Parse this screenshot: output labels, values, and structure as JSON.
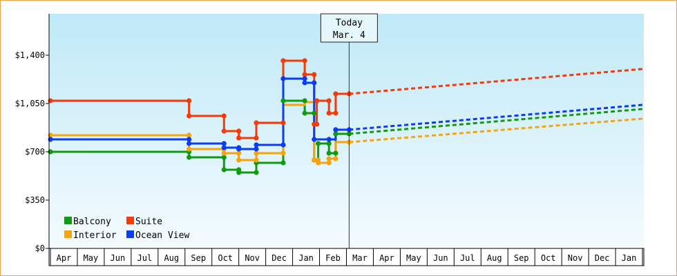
{
  "chart_data": {
    "type": "line",
    "title": "",
    "xlabel": "",
    "ylabel": "",
    "ylim": [
      0,
      1700
    ],
    "y_ticks": [
      {
        "value": 0,
        "label": "$0"
      },
      {
        "value": 350,
        "label": "$350"
      },
      {
        "value": 700,
        "label": "$700"
      },
      {
        "value": 1050,
        "label": "$1,050"
      },
      {
        "value": 1400,
        "label": "$1,400"
      }
    ],
    "x_tick_labels": [
      "Apr",
      "May",
      "Jun",
      "Jul",
      "Aug",
      "Sep",
      "Oct",
      "Nov",
      "Dec",
      "Jan",
      "Feb",
      "Mar",
      "Apr",
      "May",
      "Jun",
      "Jul",
      "Aug",
      "Sep",
      "Oct",
      "Nov",
      "Dec",
      "Jan"
    ],
    "x_units": "months since start of Apr of first year (0 = Apr 1)",
    "today": {
      "x": 11.1,
      "label_line1": "Today",
      "label_line2": "Mar. 4"
    },
    "grid": false,
    "legend_position": "bottom-left",
    "colors": {
      "plot_bg_top": "#bfe9f7",
      "plot_bg_bottom": "#f4fbfe",
      "frame_border": "#e9a24a",
      "axis": "#000000"
    },
    "series": [
      {
        "name": "Balcony",
        "color": "#0f9a0f",
        "history": [
          [
            0,
            700
          ],
          [
            5.15,
            700
          ],
          [
            5.15,
            660
          ],
          [
            6.45,
            660
          ],
          [
            6.45,
            570
          ],
          [
            7.0,
            570
          ],
          [
            7.0,
            550
          ],
          [
            7.65,
            550
          ],
          [
            7.65,
            620
          ],
          [
            8.65,
            620
          ],
          [
            8.65,
            1070
          ],
          [
            9.45,
            1070
          ],
          [
            9.45,
            980
          ],
          [
            9.8,
            980
          ],
          [
            9.8,
            640
          ],
          [
            9.95,
            640
          ],
          [
            9.95,
            760
          ],
          [
            10.35,
            760
          ],
          [
            10.35,
            690
          ],
          [
            10.6,
            690
          ],
          [
            10.6,
            830
          ],
          [
            11.1,
            830
          ]
        ],
        "history_markers": [
          [
            0,
            700
          ],
          [
            5.15,
            700
          ],
          [
            5.15,
            660
          ],
          [
            6.45,
            660
          ],
          [
            6.45,
            570
          ],
          [
            7.0,
            570
          ],
          [
            7.0,
            550
          ],
          [
            7.65,
            550
          ],
          [
            7.65,
            620
          ],
          [
            8.65,
            620
          ],
          [
            8.65,
            1070
          ],
          [
            9.45,
            1070
          ],
          [
            9.45,
            980
          ],
          [
            9.8,
            980
          ],
          [
            9.8,
            640
          ],
          [
            9.95,
            640
          ],
          [
            9.95,
            760
          ],
          [
            10.35,
            760
          ],
          [
            10.35,
            690
          ],
          [
            10.6,
            690
          ],
          [
            10.6,
            830
          ],
          [
            11.1,
            830
          ]
        ],
        "forecast": [
          [
            11.1,
            830
          ],
          [
            22,
            1010
          ]
        ]
      },
      {
        "name": "Suite",
        "color": "#f23a0a",
        "history": [
          [
            0,
            1070
          ],
          [
            5.15,
            1070
          ],
          [
            5.15,
            960
          ],
          [
            6.45,
            960
          ],
          [
            6.45,
            850
          ],
          [
            7.0,
            850
          ],
          [
            7.0,
            800
          ],
          [
            7.65,
            800
          ],
          [
            7.65,
            910
          ],
          [
            8.65,
            910
          ],
          [
            8.65,
            1360
          ],
          [
            9.45,
            1360
          ],
          [
            9.45,
            1260
          ],
          [
            9.8,
            1260
          ],
          [
            9.8,
            900
          ],
          [
            9.9,
            900
          ],
          [
            9.9,
            1070
          ],
          [
            10.35,
            1070
          ],
          [
            10.35,
            980
          ],
          [
            10.6,
            980
          ],
          [
            10.6,
            1120
          ],
          [
            11.1,
            1120
          ]
        ],
        "history_markers": [
          [
            0,
            1070
          ],
          [
            5.15,
            1070
          ],
          [
            5.15,
            960
          ],
          [
            6.45,
            960
          ],
          [
            6.45,
            850
          ],
          [
            7.0,
            850
          ],
          [
            7.0,
            800
          ],
          [
            7.65,
            800
          ],
          [
            7.65,
            910
          ],
          [
            8.65,
            910
          ],
          [
            8.65,
            1360
          ],
          [
            9.45,
            1360
          ],
          [
            9.45,
            1260
          ],
          [
            9.8,
            1260
          ],
          [
            9.8,
            900
          ],
          [
            9.9,
            900
          ],
          [
            9.9,
            1070
          ],
          [
            10.35,
            1070
          ],
          [
            10.35,
            980
          ],
          [
            10.6,
            980
          ],
          [
            10.6,
            1120
          ],
          [
            11.1,
            1120
          ]
        ],
        "forecast": [
          [
            11.1,
            1120
          ],
          [
            22,
            1300
          ]
        ]
      },
      {
        "name": "Interior",
        "color": "#f5a40f",
        "history": [
          [
            0,
            820
          ],
          [
            5.15,
            820
          ],
          [
            5.15,
            720
          ],
          [
            6.45,
            720
          ],
          [
            6.45,
            690
          ],
          [
            7.0,
            690
          ],
          [
            7.0,
            640
          ],
          [
            7.65,
            640
          ],
          [
            7.65,
            690
          ],
          [
            8.65,
            690
          ],
          [
            8.65,
            1040
          ],
          [
            9.45,
            1040
          ],
          [
            9.45,
            1060
          ],
          [
            9.8,
            1060
          ],
          [
            9.8,
            640
          ],
          [
            9.95,
            640
          ],
          [
            9.95,
            620
          ],
          [
            10.35,
            620
          ],
          [
            10.35,
            650
          ],
          [
            10.6,
            650
          ],
          [
            10.6,
            770
          ],
          [
            11.1,
            770
          ]
        ],
        "history_markers": [
          [
            0,
            820
          ],
          [
            5.15,
            820
          ],
          [
            5.15,
            720
          ],
          [
            6.45,
            720
          ],
          [
            6.45,
            690
          ],
          [
            7.0,
            690
          ],
          [
            7.0,
            640
          ],
          [
            7.65,
            640
          ],
          [
            7.65,
            690
          ],
          [
            8.65,
            690
          ],
          [
            9.8,
            640
          ],
          [
            9.95,
            640
          ],
          [
            9.95,
            620
          ],
          [
            10.35,
            620
          ],
          [
            10.35,
            650
          ],
          [
            10.6,
            650
          ],
          [
            11.1,
            770
          ]
        ],
        "forecast": [
          [
            11.1,
            770
          ],
          [
            22,
            940
          ]
        ]
      },
      {
        "name": "Ocean View",
        "color": "#0a3cf0",
        "history": [
          [
            0,
            790
          ],
          [
            5.15,
            790
          ],
          [
            5.15,
            760
          ],
          [
            6.45,
            760
          ],
          [
            6.45,
            730
          ],
          [
            7.0,
            730
          ],
          [
            7.0,
            720
          ],
          [
            7.65,
            720
          ],
          [
            7.65,
            750
          ],
          [
            8.65,
            750
          ],
          [
            8.65,
            1230
          ],
          [
            9.45,
            1230
          ],
          [
            9.45,
            1200
          ],
          [
            9.8,
            1200
          ],
          [
            9.8,
            790
          ],
          [
            10.35,
            790
          ],
          [
            10.35,
            790
          ],
          [
            10.6,
            790
          ],
          [
            10.6,
            860
          ],
          [
            11.1,
            860
          ]
        ],
        "history_markers": [
          [
            0,
            790
          ],
          [
            5.15,
            790
          ],
          [
            5.15,
            760
          ],
          [
            6.45,
            760
          ],
          [
            6.45,
            730
          ],
          [
            7.0,
            730
          ],
          [
            7.0,
            720
          ],
          [
            7.65,
            720
          ],
          [
            7.65,
            750
          ],
          [
            8.65,
            750
          ],
          [
            8.65,
            1230
          ],
          [
            9.45,
            1230
          ],
          [
            9.45,
            1200
          ],
          [
            9.8,
            1200
          ],
          [
            9.8,
            790
          ],
          [
            10.35,
            790
          ],
          [
            10.6,
            860
          ],
          [
            11.1,
            860
          ]
        ],
        "forecast": [
          [
            11.1,
            860
          ],
          [
            22,
            1040
          ]
        ]
      }
    ]
  }
}
